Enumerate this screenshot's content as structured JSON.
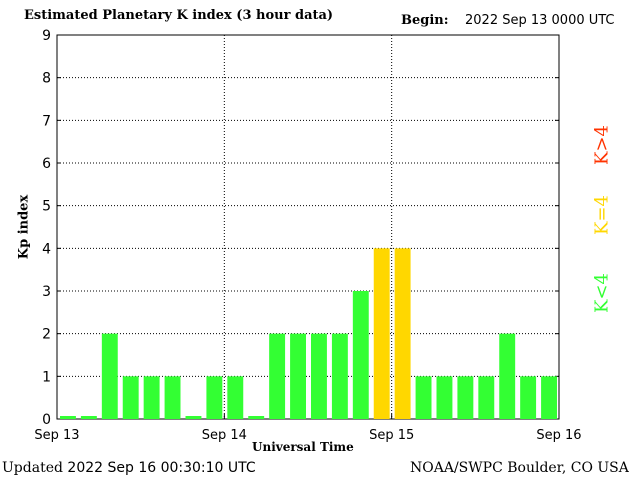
{
  "header": {
    "title": "Estimated Planetary K index (3 hour data)",
    "begin_label": "Begin:",
    "begin_value": "2022 Sep 13 0000 UTC"
  },
  "footer": {
    "updated_label": "Updated",
    "updated_value": "2022 Sep 16 00:30:10 UTC",
    "credit": "NOAA/SWPC Boulder, CO USA"
  },
  "chart_data": {
    "type": "bar",
    "title": "Estimated Planetary K index (3 hour data)",
    "xlabel": "Universal Time",
    "ylabel": "Kp index",
    "ylim": [
      0,
      9
    ],
    "yticks": [
      "0",
      "1",
      "2",
      "3",
      "4",
      "5",
      "6",
      "7",
      "8",
      "9"
    ],
    "xticks": [
      "Sep 13",
      "Sep 14",
      "Sep 15",
      "Sep 16"
    ],
    "grid": true,
    "values": [
      0,
      0,
      2,
      1,
      1,
      1,
      0,
      1,
      1,
      0,
      2,
      2,
      2,
      2,
      3,
      4,
      4,
      1,
      1,
      1,
      1,
      2,
      1,
      1
    ],
    "colors": {
      "below4": "#33ff33",
      "equal4": "#ffd700",
      "above4": "#ff3300"
    },
    "legend": [
      {
        "label": "K<4",
        "color": "#33ff33"
      },
      {
        "label": "K=4",
        "color": "#ffd700"
      },
      {
        "label": "K>4",
        "color": "#ff3300"
      }
    ],
    "legend_position": "right"
  }
}
